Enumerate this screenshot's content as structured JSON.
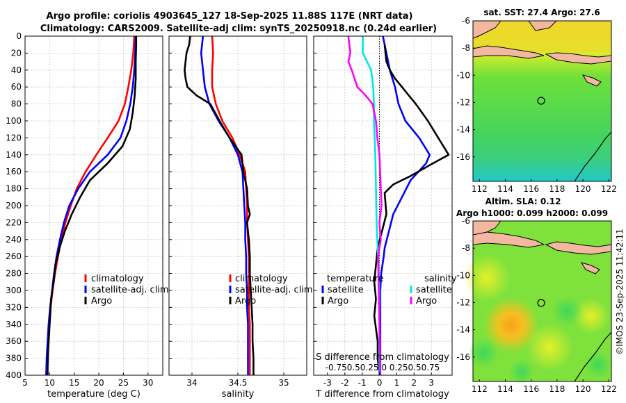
{
  "header": {
    "title_line1": "Argo profile: coriolis 4903645_127 18-Sep-2025 11.88S 117E (NRT data)",
    "title_line2": "Climatology: CARS2009. Satellite-adj clim: synTS_20250918.nc (0.24d earlier)"
  },
  "copyright": "©IMOS 23-Sep-2025 11:42:11",
  "colors": {
    "climatology": "#ff0000",
    "satellite": "#0000ff",
    "argo": "#000000",
    "sal_satellite": "#00e5e5",
    "sal_argo": "#ff00ff"
  },
  "chart_data": [
    {
      "type": "line",
      "id": "temperature",
      "xlabel": "temperature (deg C)",
      "ylabel": "",
      "xlim": [
        5,
        33
      ],
      "ylim": [
        400,
        0
      ],
      "xticks": [
        5,
        10,
        15,
        20,
        25,
        30
      ],
      "yticks": [
        0,
        20,
        40,
        60,
        80,
        100,
        120,
        140,
        160,
        180,
        200,
        220,
        240,
        260,
        280,
        300,
        320,
        340,
        360,
        380,
        400
      ],
      "grid": true,
      "legend": {
        "position": "lower-right",
        "entries": [
          "climatology",
          "satellite-adj. clim",
          "Argo"
        ]
      },
      "series": [
        {
          "name": "climatology",
          "color": "#ff0000",
          "points": [
            [
              27.2,
              0
            ],
            [
              27.0,
              20
            ],
            [
              26.6,
              40
            ],
            [
              26.0,
              60
            ],
            [
              25.3,
              80
            ],
            [
              24.0,
              100
            ],
            [
              21.8,
              120
            ],
            [
              19.5,
              140
            ],
            [
              17.3,
              160
            ],
            [
              15.5,
              180
            ],
            [
              14.3,
              200
            ],
            [
              13.2,
              220
            ],
            [
              12.4,
              240
            ],
            [
              11.7,
              260
            ],
            [
              11.1,
              280
            ],
            [
              10.6,
              300
            ],
            [
              10.2,
              320
            ],
            [
              9.9,
              340
            ],
            [
              9.7,
              360
            ],
            [
              9.5,
              380
            ],
            [
              9.3,
              400
            ]
          ]
        },
        {
          "name": "satellite-adj. clim",
          "color": "#0000ff",
          "points": [
            [
              27.5,
              0
            ],
            [
              27.4,
              20
            ],
            [
              27.2,
              40
            ],
            [
              26.9,
              60
            ],
            [
              26.4,
              80
            ],
            [
              25.6,
              100
            ],
            [
              24.4,
              120
            ],
            [
              21.8,
              140
            ],
            [
              18.2,
              160
            ],
            [
              15.8,
              180
            ],
            [
              14.0,
              200
            ],
            [
              12.9,
              220
            ],
            [
              12.1,
              240
            ],
            [
              11.4,
              260
            ],
            [
              10.9,
              280
            ],
            [
              10.5,
              300
            ],
            [
              10.1,
              320
            ],
            [
              9.8,
              340
            ],
            [
              9.6,
              360
            ],
            [
              9.4,
              380
            ],
            [
              9.3,
              400
            ]
          ]
        },
        {
          "name": "Argo",
          "color": "#000000",
          "points": [
            [
              27.6,
              0
            ],
            [
              27.6,
              10
            ],
            [
              27.5,
              30
            ],
            [
              27.5,
              50
            ],
            [
              27.3,
              70
            ],
            [
              26.9,
              90
            ],
            [
              26.3,
              110
            ],
            [
              24.8,
              130
            ],
            [
              21.8,
              150
            ],
            [
              18.2,
              170
            ],
            [
              16.2,
              190
            ],
            [
              14.5,
              210
            ],
            [
              13.1,
              230
            ],
            [
              12.0,
              250
            ],
            [
              11.2,
              270
            ],
            [
              10.8,
              290
            ],
            [
              10.3,
              310
            ],
            [
              10.1,
              330
            ],
            [
              9.9,
              350
            ],
            [
              9.7,
              370
            ],
            [
              9.6,
              390
            ],
            [
              9.6,
              400
            ]
          ]
        }
      ]
    },
    {
      "type": "line",
      "id": "salinity",
      "xlabel": "salinity",
      "ylabel": "",
      "xlim": [
        33.75,
        35.25
      ],
      "ylim": [
        400,
        0
      ],
      "xticks": [
        34,
        34.5,
        35
      ],
      "xtick_labels": [
        "34",
        "34.5",
        "35"
      ],
      "grid": true,
      "legend": {
        "position": "lower-right",
        "entries": [
          "climatology",
          "satellite-adj. clim",
          "Argo"
        ]
      },
      "series": [
        {
          "name": "climatology",
          "color": "#ff0000",
          "points": [
            [
              34.22,
              0
            ],
            [
              34.23,
              20
            ],
            [
              34.22,
              40
            ],
            [
              34.22,
              60
            ],
            [
              34.26,
              80
            ],
            [
              34.33,
              100
            ],
            [
              34.44,
              120
            ],
            [
              34.52,
              140
            ],
            [
              34.58,
              160
            ],
            [
              34.59,
              180
            ],
            [
              34.6,
              200
            ],
            [
              34.6,
              220
            ],
            [
              34.61,
              240
            ],
            [
              34.62,
              260
            ],
            [
              34.62,
              280
            ],
            [
              34.62,
              300
            ],
            [
              34.62,
              320
            ],
            [
              34.63,
              340
            ],
            [
              34.63,
              360
            ],
            [
              34.63,
              380
            ],
            [
              34.63,
              400
            ]
          ]
        },
        {
          "name": "satellite-adj. clim",
          "color": "#0000ff",
          "points": [
            [
              34.12,
              0
            ],
            [
              34.11,
              10
            ],
            [
              34.1,
              20
            ],
            [
              34.12,
              40
            ],
            [
              34.14,
              60
            ],
            [
              34.19,
              80
            ],
            [
              34.29,
              100
            ],
            [
              34.41,
              120
            ],
            [
              34.5,
              140
            ],
            [
              34.55,
              160
            ],
            [
              34.56,
              180
            ],
            [
              34.57,
              200
            ],
            [
              34.58,
              220
            ],
            [
              34.58,
              240
            ],
            [
              34.59,
              260
            ],
            [
              34.59,
              280
            ],
            [
              34.6,
              300
            ],
            [
              34.6,
              320
            ],
            [
              34.61,
              340
            ],
            [
              34.61,
              360
            ],
            [
              34.61,
              380
            ],
            [
              34.61,
              400
            ]
          ]
        },
        {
          "name": "Argo",
          "color": "#000000",
          "points": [
            [
              33.98,
              0
            ],
            [
              33.97,
              10
            ],
            [
              33.94,
              20
            ],
            [
              33.92,
              40
            ],
            [
              33.93,
              50
            ],
            [
              33.95,
              60
            ],
            [
              34.05,
              70
            ],
            [
              34.2,
              80
            ],
            [
              34.3,
              100
            ],
            [
              34.41,
              120
            ],
            [
              34.54,
              140
            ],
            [
              34.56,
              160
            ],
            [
              34.6,
              180
            ],
            [
              34.61,
              200
            ],
            [
              34.63,
              210
            ],
            [
              34.6,
              220
            ],
            [
              34.62,
              240
            ],
            [
              34.63,
              260
            ],
            [
              34.63,
              280
            ],
            [
              34.64,
              300
            ],
            [
              34.65,
              320
            ],
            [
              34.66,
              340
            ],
            [
              34.66,
              360
            ],
            [
              34.67,
              380
            ],
            [
              34.67,
              400
            ]
          ]
        }
      ]
    },
    {
      "type": "line",
      "id": "differences",
      "xlabel": "T difference from climatology",
      "secondary_xlabel": "S difference from climatology",
      "secondary_xtick_labels": "-0.750.50.25 0 0.250.50.75",
      "ylabel": "",
      "xlim": [
        -3.8,
        4.2
      ],
      "ylim": [
        400,
        0
      ],
      "xticks": [
        -3,
        -2,
        -1,
        0,
        1,
        2,
        3
      ],
      "grid": true,
      "zero_line": "dotted",
      "legend": {
        "position": "lower-center",
        "temperature_heading": "temperature",
        "salinity_heading": "salinity",
        "entries": [
          "satellite",
          "Argo",
          "satellite",
          "Argo"
        ]
      },
      "series": [
        {
          "name": "temperature satellite",
          "color": "#0000ff",
          "points": [
            [
              0.2,
              0
            ],
            [
              0.4,
              20
            ],
            [
              0.6,
              40
            ],
            [
              0.9,
              60
            ],
            [
              1.1,
              80
            ],
            [
              1.5,
              100
            ],
            [
              2.3,
              120
            ],
            [
              2.9,
              140
            ],
            [
              2.7,
              150
            ],
            [
              1.8,
              170
            ],
            [
              1.3,
              190
            ],
            [
              0.8,
              210
            ],
            [
              0.55,
              230
            ],
            [
              0.3,
              250
            ],
            [
              0.25,
              260
            ],
            [
              0.1,
              280
            ],
            [
              0.05,
              300
            ],
            [
              0.05,
              320
            ],
            [
              0.05,
              340
            ],
            [
              0.05,
              360
            ],
            [
              0.05,
              380
            ],
            [
              0.05,
              400
            ]
          ]
        },
        {
          "name": "temperature Argo",
          "color": "#000000",
          "points": [
            [
              0.3,
              10
            ],
            [
              0.4,
              30
            ],
            [
              0.6,
              40
            ],
            [
              0.9,
              50
            ],
            [
              1.3,
              60
            ],
            [
              1.7,
              70
            ],
            [
              2.1,
              80
            ],
            [
              2.8,
              100
            ],
            [
              3.4,
              120
            ],
            [
              4.0,
              140
            ],
            [
              3.1,
              150
            ],
            [
              1.8,
              165
            ],
            [
              0.8,
              175
            ],
            [
              0.3,
              185
            ],
            [
              0.4,
              210
            ],
            [
              -0.1,
              250
            ],
            [
              -0.2,
              270
            ],
            [
              -0.3,
              290
            ],
            [
              -0.2,
              310
            ],
            [
              -0.3,
              330
            ],
            [
              -0.2,
              345
            ],
            [
              -0.1,
              360
            ],
            [
              -0.1,
              380
            ],
            [
              0.0,
              400
            ]
          ]
        },
        {
          "name": "salinity satellite",
          "color": "#00e5e5",
          "points": [
            [
              -0.24,
              0
            ],
            [
              -0.24,
              20
            ],
            [
              -0.12,
              40
            ],
            [
              -0.09,
              60
            ],
            [
              -0.08,
              80
            ],
            [
              -0.08,
              100
            ],
            [
              -0.06,
              140
            ],
            [
              -0.05,
              180
            ],
            [
              -0.04,
              220
            ],
            [
              -0.02,
              260
            ],
            [
              0.0,
              300
            ],
            [
              0.0,
              340
            ],
            [
              0.0,
              400
            ]
          ]
        },
        {
          "name": "salinity Argo",
          "color": "#ff00ff",
          "points": [
            [
              -0.45,
              0
            ],
            [
              -0.42,
              20
            ],
            [
              -0.45,
              30
            ],
            [
              -0.4,
              40
            ],
            [
              -0.32,
              60
            ],
            [
              -0.2,
              70
            ],
            [
              -0.1,
              80
            ],
            [
              -0.05,
              100
            ],
            [
              -0.03,
              120
            ],
            [
              0.0,
              140
            ],
            [
              0.02,
              180
            ],
            [
              0.03,
              200
            ],
            [
              0.0,
              220
            ],
            [
              0.02,
              240
            ],
            [
              -0.02,
              260
            ],
            [
              -0.01,
              300
            ],
            [
              0.0,
              340
            ],
            [
              0.01,
              380
            ],
            [
              0.01,
              400
            ]
          ]
        }
      ]
    },
    {
      "type": "heatmap",
      "id": "sst_map",
      "title": "sat. SST: 27.4  Argo: 27.6",
      "xticks": [
        112,
        114,
        116,
        118,
        120,
        122
      ],
      "yticks": [
        -6,
        -8,
        -10,
        -12,
        -14,
        -16
      ],
      "xlim": [
        111.5,
        122.2
      ],
      "ylim": [
        -17.8,
        -6
      ],
      "marker": {
        "lon": 117,
        "lat": -11.88
      }
    },
    {
      "type": "heatmap",
      "id": "sla_map",
      "title": "Altim. SLA: 0.12",
      "subtitle": "Argo h1000: 0.099 h2000: 0.099",
      "xticks": [
        112,
        114,
        116,
        118,
        120,
        122
      ],
      "yticks": [
        -6,
        -8,
        -10,
        -12,
        -14,
        -16
      ],
      "xlim": [
        111.5,
        122.2
      ],
      "ylim": [
        -17.8,
        -6
      ],
      "marker": {
        "lon": 117,
        "lat": -11.88
      }
    }
  ]
}
